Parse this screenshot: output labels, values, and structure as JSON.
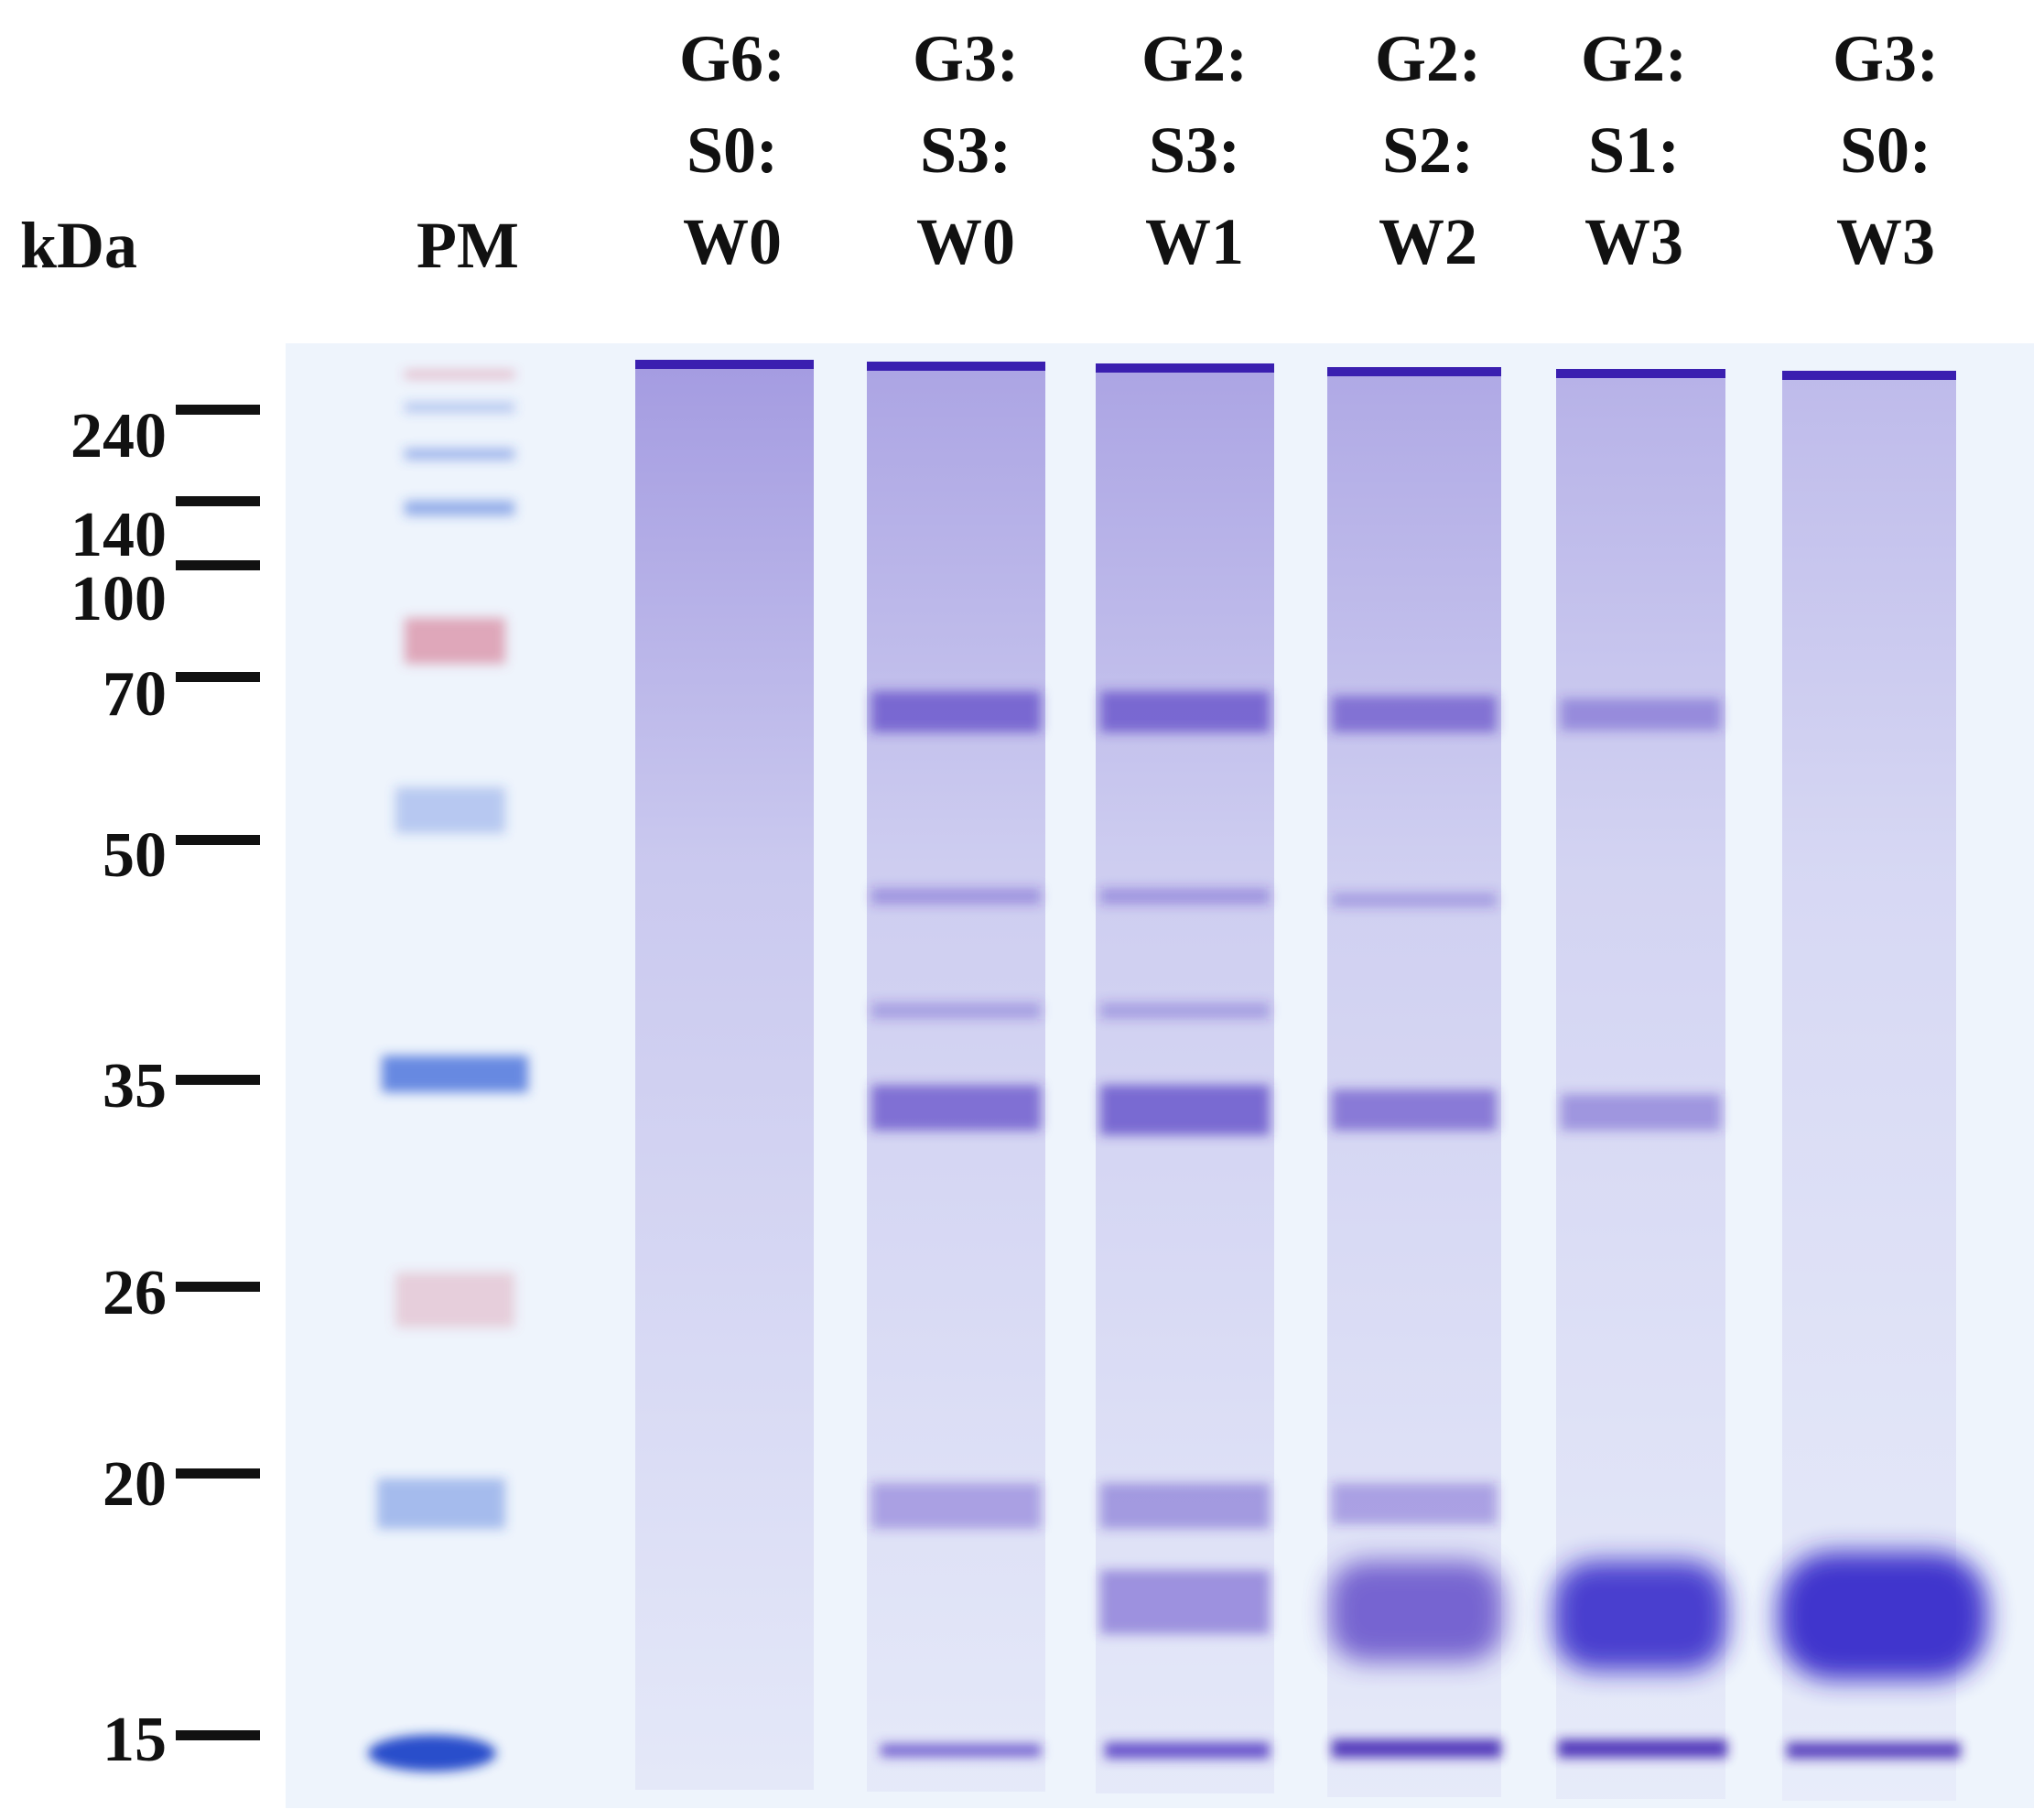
{
  "axis_label": "kDa",
  "marker_lane_label": "PM",
  "lanes": [
    {
      "line1": "G6:",
      "line2": "S0:",
      "line3": "W0"
    },
    {
      "line1": "G3:",
      "line2": "S3:",
      "line3": "W0"
    },
    {
      "line1": "G2:",
      "line2": "S3:",
      "line3": "W1"
    },
    {
      "line1": "G2:",
      "line2": "S2:",
      "line3": "W2"
    },
    {
      "line1": "G2:",
      "line2": "S1:",
      "line3": "W3"
    },
    {
      "line1": "G3:",
      "line2": "S0:",
      "line3": "W3"
    }
  ],
  "markers": [
    "240",
    "140",
    "100",
    "70",
    "50",
    "35",
    "26",
    "20",
    "15"
  ],
  "colors": {
    "gel_background": "#eef4fc",
    "stain": "#4a2fc0",
    "marker_blue": "#3a66d8",
    "marker_pink": "#d05a78",
    "text": "#111111"
  }
}
